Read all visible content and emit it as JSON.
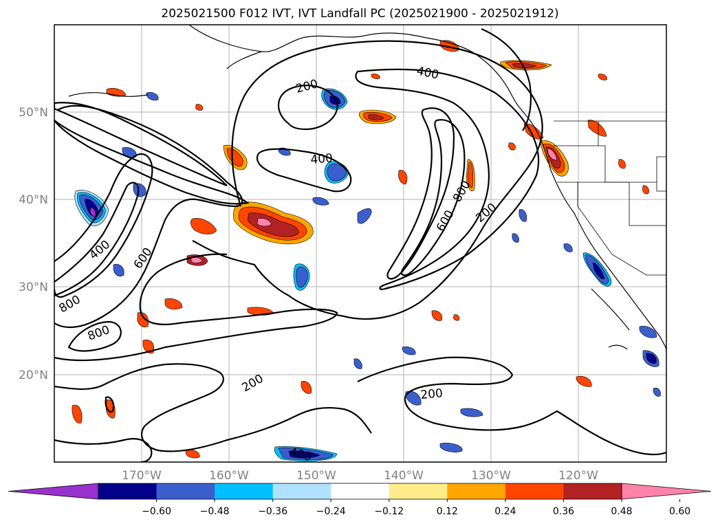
{
  "title": "2025021500 F012 IVT, IVT Landfall PC (2025021900 - 2025021912)",
  "map": {
    "lat_ticks": [
      "50°N",
      "40°N",
      "30°N",
      "20°N"
    ],
    "lon_ticks": [
      "170°W",
      "160°W",
      "150°W",
      "140°W",
      "130°W",
      "120°W"
    ],
    "contour_labels": [
      "400",
      "200",
      "400",
      "400",
      "800",
      "600",
      "200",
      "400",
      "600",
      "800",
      "800",
      "200",
      "200",
      "400"
    ]
  },
  "colorbar": {
    "colors": [
      "#9932cc",
      "#00008b",
      "#3a5fcd",
      "#00bfff",
      "#b0e2ff",
      "#ffffff",
      "#ffec8b",
      "#ffa500",
      "#ff4500",
      "#b22222",
      "#ff82ab"
    ],
    "labels": [
      "−0.60",
      "−0.48",
      "−0.36",
      "−0.24",
      "−0.12",
      "0.12",
      "0.24",
      "0.36",
      "0.48",
      "0.60"
    ]
  }
}
